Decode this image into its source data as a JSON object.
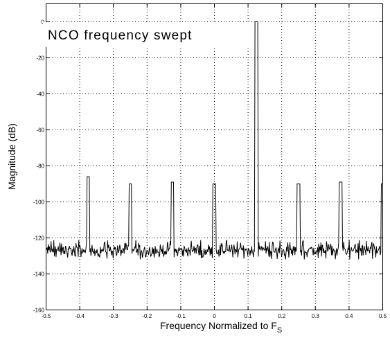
{
  "chart_data": {
    "type": "line",
    "annotation": "NCO frequency swept",
    "xlabel": "Frequency Normalized to F",
    "xlabel_sub": "S",
    "ylabel": "Magnitude (dB)",
    "xlim": [
      -0.5,
      0.5
    ],
    "ylim": [
      -160,
      10
    ],
    "x_ticks": [
      -0.5,
      -0.4,
      -0.3,
      -0.2,
      -0.1,
      0,
      0.1,
      0.2,
      0.3,
      0.4,
      0.5
    ],
    "x_tick_labels": [
      "-0.5",
      "-0.4",
      "-0.3",
      "-0.2",
      "-0.1",
      "0",
      "0.1",
      "0.2",
      "0.3",
      "0.4",
      "0.5"
    ],
    "y_ticks": [
      0,
      -20,
      -40,
      -60,
      -80,
      -100,
      -120,
      -140,
      -160
    ],
    "y_tick_labels": [
      "0",
      "-20",
      "-40",
      "-60",
      "-80",
      "-100",
      "-120",
      "-140",
      "-160"
    ],
    "grid": true,
    "grid_style": "dotted",
    "noise_floor_db": -127,
    "noise_band_db": [
      -132,
      -121
    ],
    "series": [
      {
        "color": "#000000",
        "peaks": [
          {
            "x": -0.375,
            "y": -86
          },
          {
            "x": -0.25,
            "y": -90
          },
          {
            "x": -0.125,
            "y": -89
          },
          {
            "x": 0.0,
            "y": -90
          },
          {
            "x": 0.125,
            "y": 0
          },
          {
            "x": 0.25,
            "y": -90
          },
          {
            "x": 0.375,
            "y": -89
          },
          {
            "x": 0.5,
            "y": -90
          }
        ]
      }
    ]
  }
}
